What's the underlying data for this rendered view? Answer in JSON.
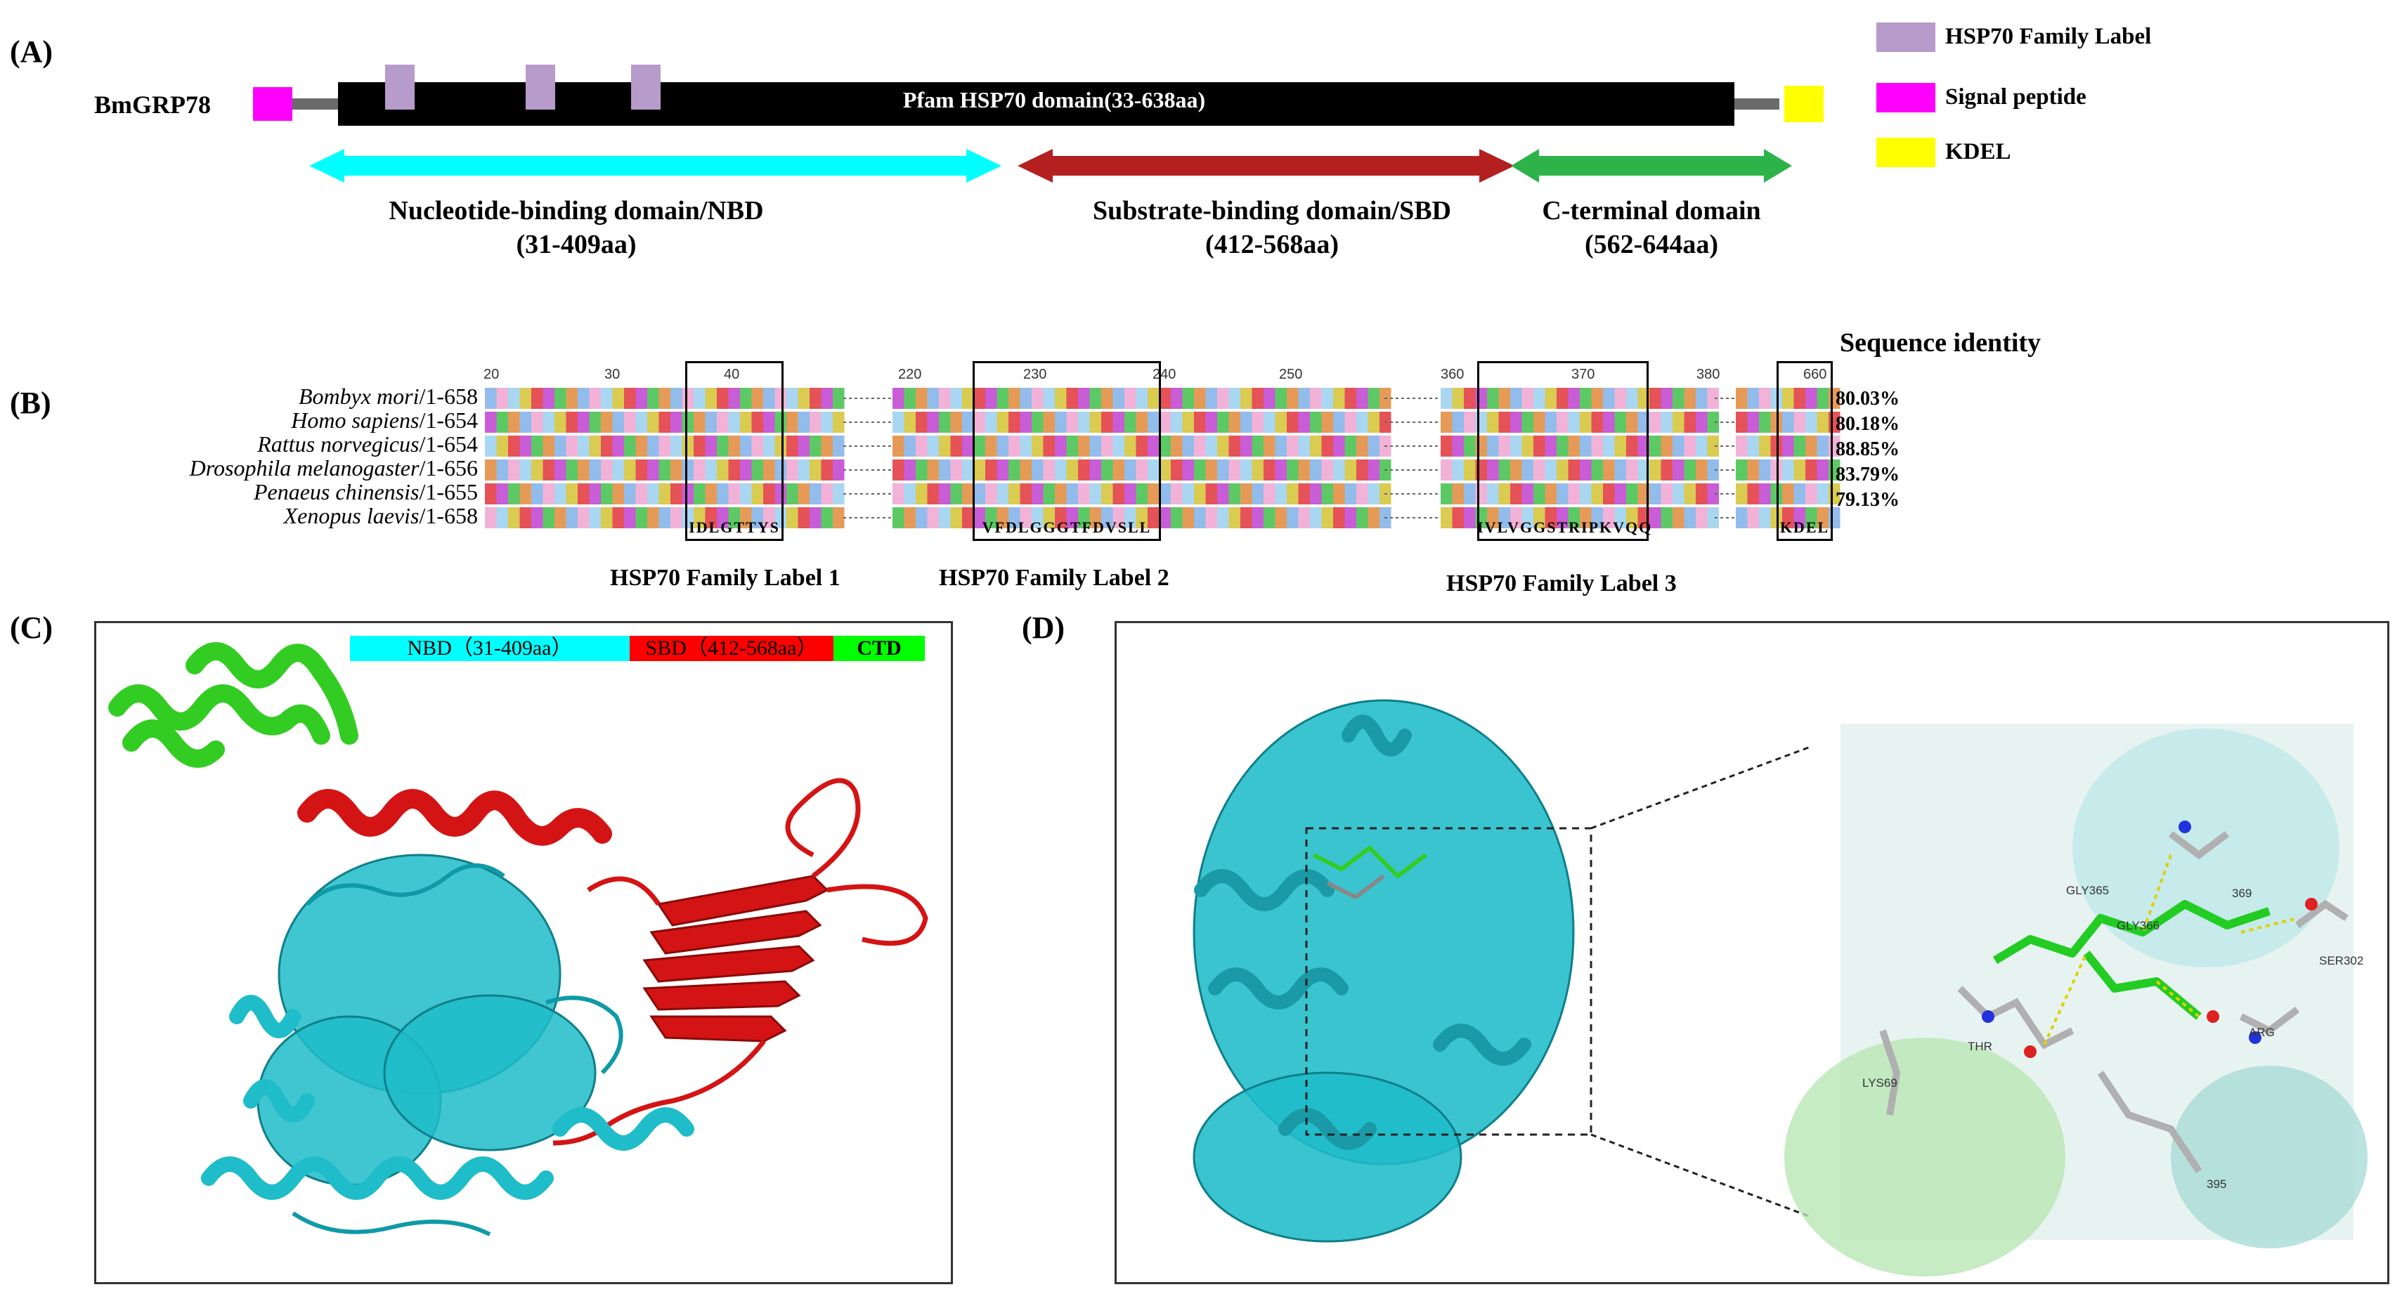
{
  "colors": {
    "hsp70_label": "#b79bcb",
    "signal_peptide": "#ff00ff",
    "kdel": "#ffff00",
    "nbd": "#00ffff",
    "sbd": "#b41f1f",
    "ctd": "#2db34a",
    "protein_cyan": "#1fbcc9",
    "protein_red": "#d41414",
    "protein_green": "#33cc22"
  },
  "panelA": {
    "letter": "(A)",
    "protein_name": "BmGRP78",
    "pfam_label": "Pfam HSP70 domain(33-638aa)",
    "domains": [
      {
        "name": "Nucleotide-binding domain/NBD",
        "range": "(31-409aa)"
      },
      {
        "name": "Substrate-binding domain/SBD",
        "range": "(412-568aa)"
      },
      {
        "name": "C-terminal domain",
        "range": "(562-644aa)"
      }
    ],
    "legend": [
      {
        "label": "HSP70 Family Label",
        "color": "#b79bcb"
      },
      {
        "label": "Signal peptide",
        "color": "#ff00ff"
      },
      {
        "label": "KDEL",
        "color": "#ffff00"
      }
    ]
  },
  "panelB": {
    "letter": "(B)",
    "header": "Sequence identity",
    "species": [
      {
        "name": "Bombyx mori",
        "range": "/1-658",
        "identity": "80.03%"
      },
      {
        "name": "Homo sapiens",
        "range": "/1-654",
        "identity": "80.18%"
      },
      {
        "name": "Rattus norvegicus",
        "range": "/1-654",
        "identity": "88.85%"
      },
      {
        "name": "Drosophila melanogaster",
        "range": "/1-656",
        "identity": "83.79%"
      },
      {
        "name": "Penaeus chinensis",
        "range": "/1-655",
        "identity": "79.13%"
      },
      {
        "name": "Xenopus laevis",
        "range": "/1-658",
        "identity": ""
      }
    ],
    "ticks": [
      "20",
      "30",
      "40",
      "220",
      "230",
      "240",
      "250",
      "360",
      "370",
      "380",
      "660"
    ],
    "motifs": [
      "IDLGTTYS",
      "VFDLGGGTFDVSLL",
      "IVLVGGSTRIPKVQQ",
      "KDEL"
    ],
    "motif_labels": [
      "HSP70 Family Label 1",
      "HSP70 Family Label 2",
      "HSP70 Family Label 3"
    ]
  },
  "panelC": {
    "letter": "(C)",
    "legend": [
      {
        "label": "NBD（31-409aa）",
        "color": "#00ffff"
      },
      {
        "label": "SBD（412-568aa）",
        "color": "#ff0000"
      },
      {
        "label": "CTD",
        "color": "#00ff00"
      }
    ]
  },
  "panelD": {
    "letter": "(D)",
    "residues": [
      "GLY365",
      "369",
      "GLY366",
      "SER302",
      "THR",
      "ARG",
      "LYS69",
      "395"
    ]
  }
}
